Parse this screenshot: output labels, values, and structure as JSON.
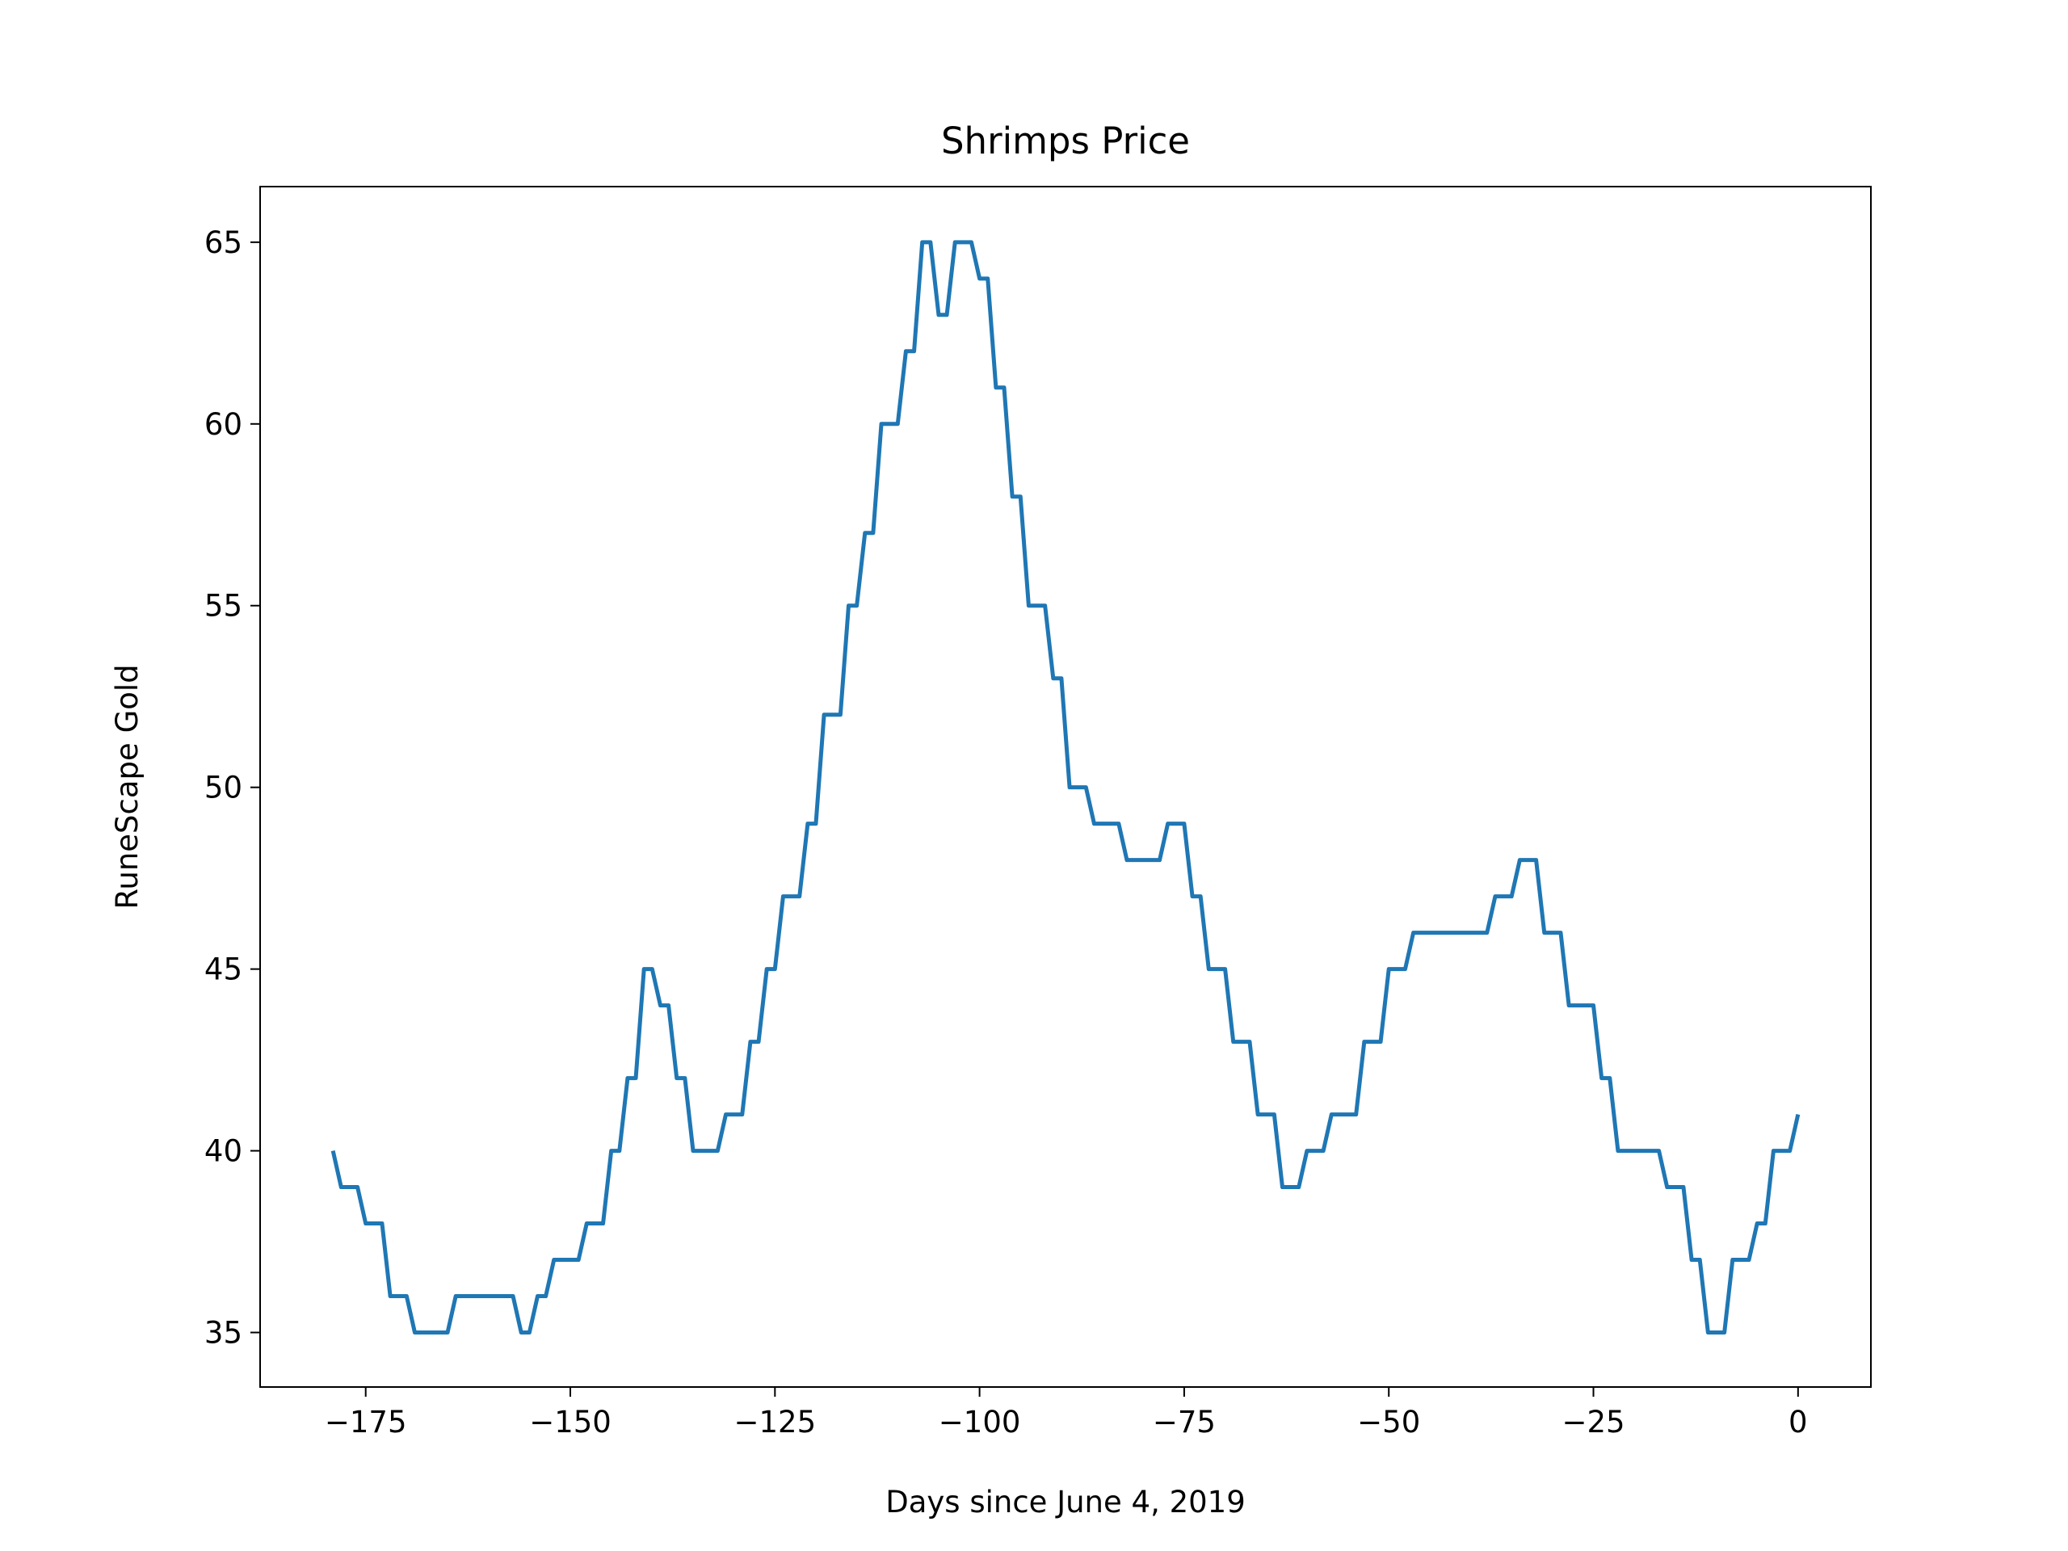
{
  "chart_data": {
    "type": "line",
    "title": "Shrimps Price",
    "x_label": "Days since June 4, 2019",
    "y_label": "RuneScape Gold",
    "x": [
      -179,
      -178,
      -176,
      -175,
      -173,
      -172,
      -170,
      -169,
      -165,
      -164,
      -157,
      -156,
      -155,
      -154,
      -153,
      -152,
      -149,
      -148,
      -146,
      -145,
      -144,
      -143,
      -142,
      -141,
      -140,
      -139,
      -138,
      -137,
      -136,
      -135,
      -132,
      -131,
      -129,
      -128,
      -127,
      -126,
      -125,
      -124,
      -122,
      -121,
      -120,
      -119,
      -117,
      -116,
      -115,
      -114,
      -113,
      -112,
      -110,
      -109,
      -108,
      -107,
      -106,
      -105,
      -104,
      -103,
      -101,
      -100,
      -99,
      -98,
      -97,
      -96,
      -95,
      -94,
      -92,
      -91,
      -90,
      -89,
      -87,
      -86,
      -83,
      -82,
      -78,
      -77,
      -75,
      -74,
      -73,
      -72,
      -70,
      -69,
      -67,
      -66,
      -64,
      -63,
      -61,
      -60,
      -58,
      -57,
      -54,
      -53,
      -51,
      -50,
      -48,
      -47,
      -38,
      -37,
      -35,
      -34,
      -32,
      -31,
      -29,
      -28,
      -25,
      -24,
      -23,
      -22,
      -17,
      -16,
      -14,
      -13,
      -12,
      -11,
      -9,
      -8,
      -6,
      -5,
      -4,
      -3,
      -1,
      0
    ],
    "values": [
      40,
      39,
      39,
      38,
      38,
      36,
      36,
      35,
      35,
      36,
      36,
      35,
      35,
      36,
      36,
      37,
      37,
      38,
      38,
      40,
      40,
      42,
      42,
      45,
      45,
      44,
      44,
      42,
      42,
      40,
      40,
      41,
      41,
      43,
      43,
      45,
      45,
      47,
      47,
      49,
      49,
      52,
      52,
      55,
      55,
      57,
      57,
      60,
      60,
      62,
      62,
      65,
      65,
      63,
      63,
      65,
      65,
      64,
      64,
      61,
      61,
      58,
      58,
      55,
      55,
      53,
      53,
      50,
      50,
      49,
      49,
      48,
      48,
      49,
      49,
      47,
      47,
      45,
      45,
      43,
      43,
      41,
      41,
      39,
      39,
      40,
      40,
      41,
      41,
      43,
      43,
      45,
      45,
      46,
      46,
      47,
      47,
      48,
      48,
      46,
      46,
      44,
      44,
      42,
      42,
      40,
      40,
      39,
      39,
      37,
      37,
      35,
      35,
      37,
      37,
      38,
      38,
      40,
      40,
      41
    ],
    "color": "#1f77b4",
    "xlim": [
      -187.9,
      8.9
    ],
    "xticks": [
      {
        "value": -175,
        "label": "−175"
      },
      {
        "value": -150,
        "label": "−150"
      },
      {
        "value": -125,
        "label": "−125"
      },
      {
        "value": -100,
        "label": "−100"
      },
      {
        "value": -75,
        "label": "−75"
      },
      {
        "value": -50,
        "label": "−50"
      },
      {
        "value": -25,
        "label": "−25"
      },
      0
    ],
    "ylim": [
      33.5,
      66.53
    ],
    "yticks": [
      35,
      40,
      45,
      50,
      55,
      60,
      65
    ]
  }
}
